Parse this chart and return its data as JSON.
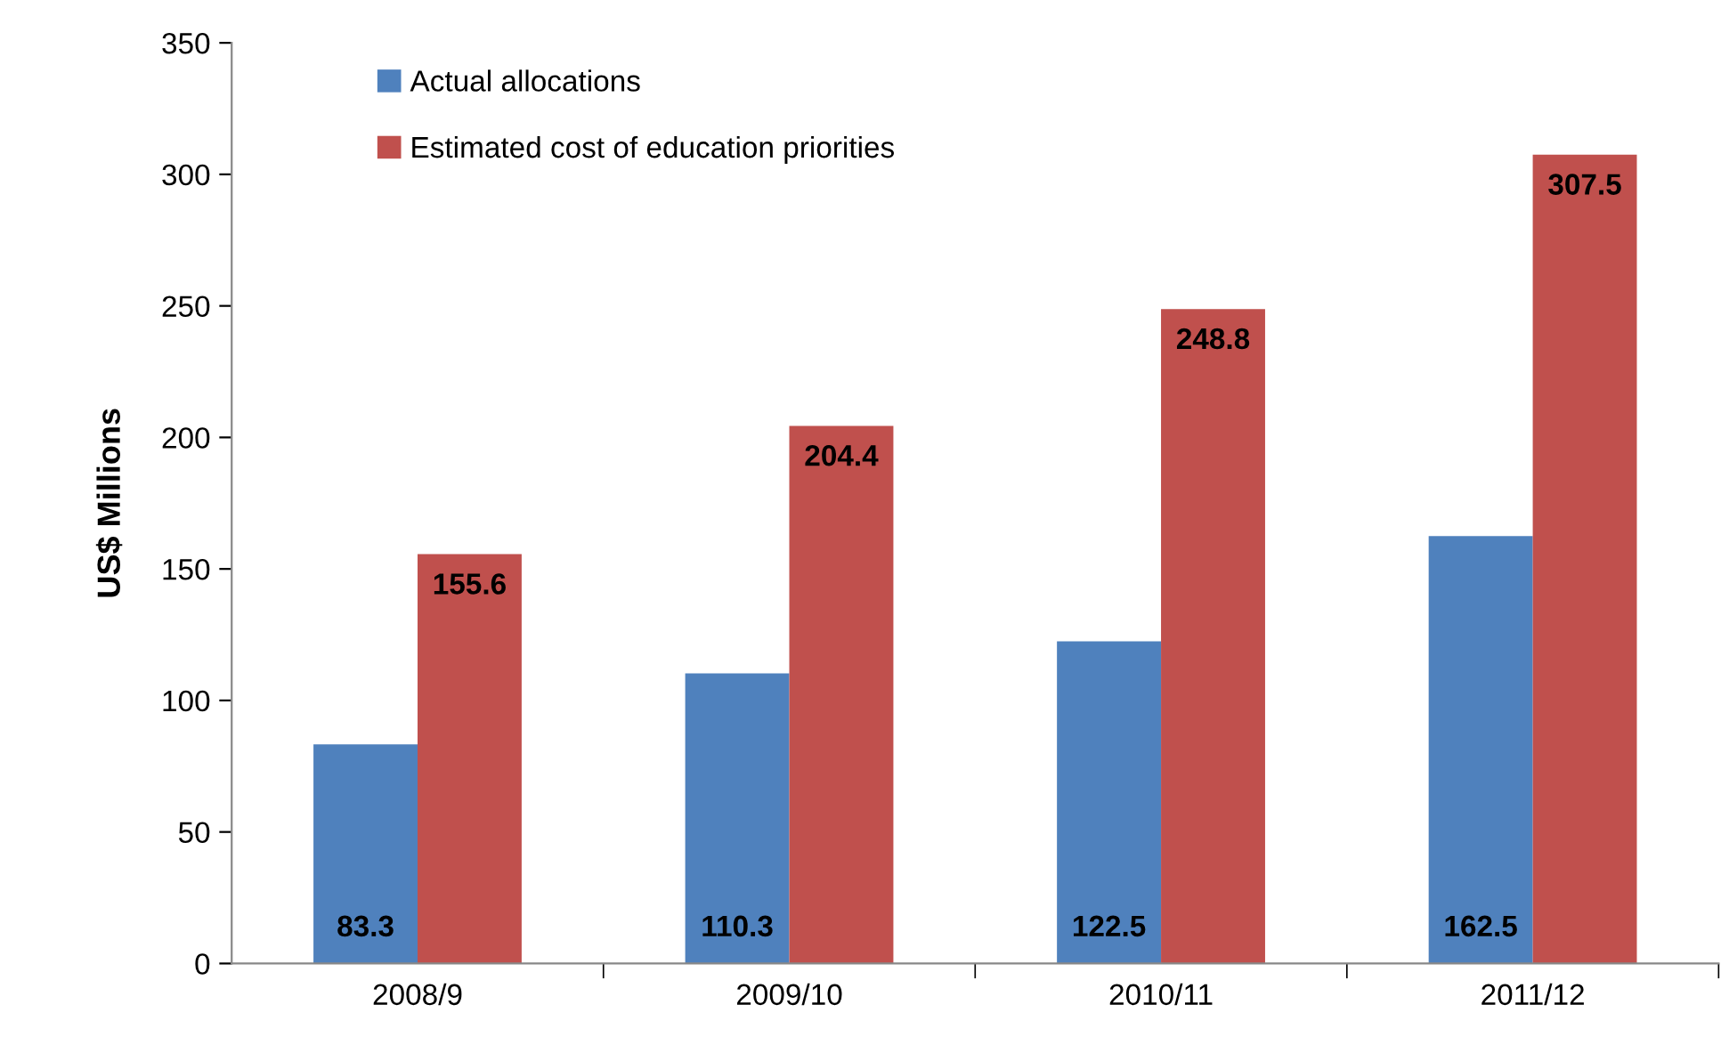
{
  "chart_data": {
    "type": "bar",
    "ylabel": "US$ Millions",
    "categories": [
      "2008/9",
      "2009/10",
      "2010/11",
      "2011/12"
    ],
    "series": [
      {
        "name": "Actual allocations",
        "color": "#4f81bd",
        "values": [
          83.3,
          110.3,
          122.5,
          162.5
        ]
      },
      {
        "name": "Estimated cost of education priorities",
        "color": "#c0504d",
        "values": [
          155.6,
          204.4,
          248.8,
          307.5
        ]
      }
    ],
    "ylim": [
      0,
      350
    ],
    "yticks": [
      0,
      50,
      100,
      150,
      200,
      250,
      300,
      350
    ],
    "grid": false,
    "legend": "top left",
    "data_labels": true
  }
}
